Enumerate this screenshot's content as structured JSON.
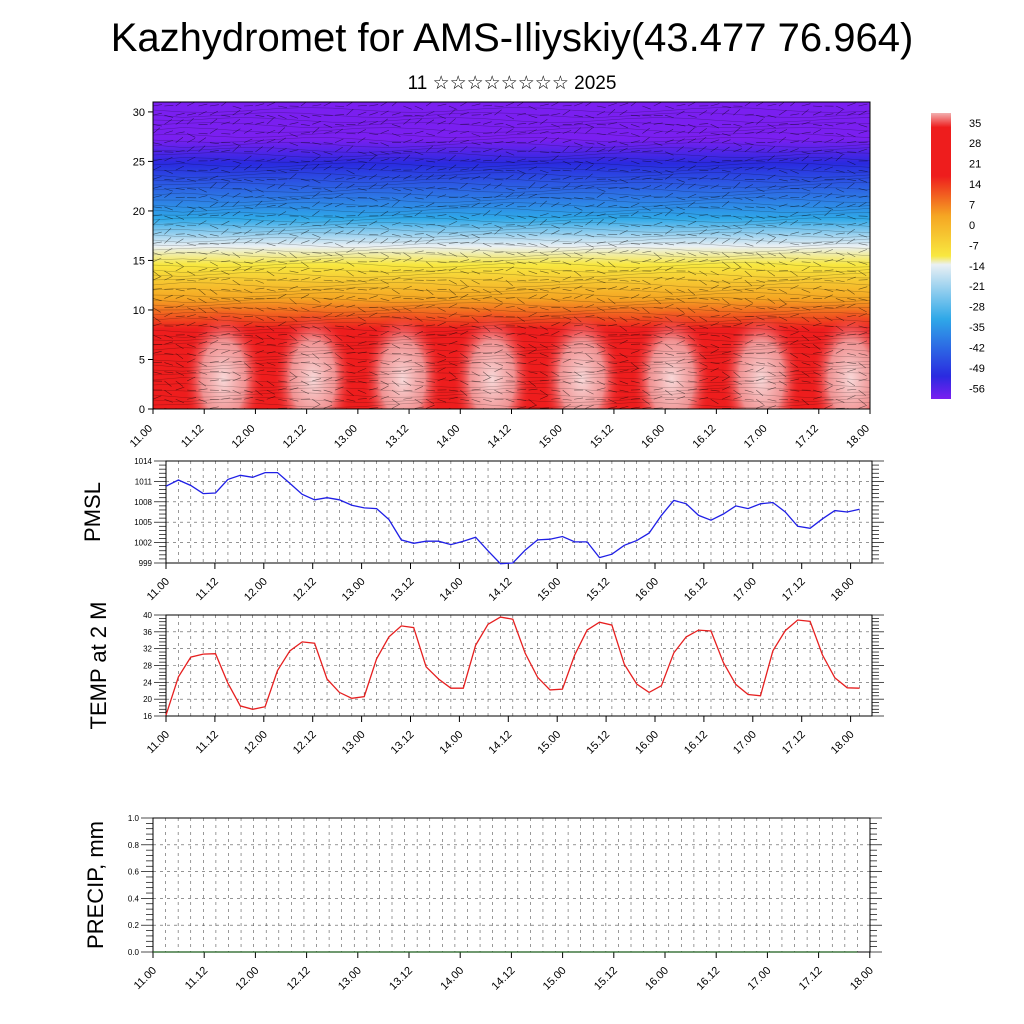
{
  "title": "Kazhydromet for AMS-Iliyskiy(43.477 76.964)",
  "subtitle": "11 ☆☆☆☆☆☆☆☆ 2025",
  "chart_data": [
    {
      "type": "heatmap",
      "name": "cross-section",
      "ylim": [
        0,
        31
      ],
      "y_ticks": [
        "0",
        "5",
        "10",
        "15",
        "20",
        "25",
        "30"
      ],
      "x_ticks": [
        "11.00",
        "11.12",
        "12.00",
        "12.12",
        "13.00",
        "13.12",
        "14.00",
        "14.12",
        "15.00",
        "15.12",
        "16.00",
        "16.12",
        "17.00",
        "17.12",
        "18.00"
      ],
      "colorbar_labels": [
        "35",
        "28",
        "21",
        "14",
        "7",
        "0",
        "-7",
        "-14",
        "-21",
        "-28",
        "-35",
        "-42",
        "-49",
        "-56"
      ],
      "colorbar_range": [
        -60,
        38
      ],
      "colors": {
        "cold": "#7a1ff0",
        "blue": "#2a2ae0",
        "cyan": "#2fa8e8",
        "white": "#eaf0f4",
        "yellow": "#f8e840",
        "orange": "#f5a623",
        "red": "#ee1d1d",
        "hot": "#f2b0b0"
      }
    },
    {
      "type": "line",
      "ylabel": "PMSL",
      "ylim": [
        999,
        1014
      ],
      "y_ticks": [
        "999",
        "1002",
        "1005",
        "1008",
        "1011",
        "1014"
      ],
      "x_ticks": [
        "11.00",
        "11.12",
        "12.00",
        "12.12",
        "13.00",
        "13.12",
        "14.00",
        "14.12",
        "15.00",
        "15.12",
        "16.00",
        "16.12",
        "17.00",
        "17.12",
        "18.00"
      ],
      "x_max": 57,
      "color": "#1f1fe6",
      "values": [
        1010.3,
        1011.2,
        1010.4,
        1009.2,
        1009.3,
        1011.3,
        1011.9,
        1011.6,
        1012.3,
        1012.3,
        1010.7,
        1009.1,
        1008.3,
        1008.6,
        1008.3,
        1007.5,
        1007.1,
        1007.0,
        1005.4,
        1002.4,
        1001.9,
        1002.2,
        1002.2,
        1001.7,
        1002.2,
        1002.8,
        1000.8,
        998.9,
        999.0,
        1000.9,
        1002.4,
        1002.5,
        1002.9,
        1002.1,
        1002.1,
        999.8,
        1000.3,
        1001.6,
        1002.3,
        1003.4,
        1006.0,
        1008.2,
        1007.7,
        1006.0,
        1005.3,
        1006.2,
        1007.4,
        1007.0,
        1007.7,
        1007.9,
        1006.5,
        1004.4,
        1004.1,
        1005.5,
        1006.7,
        1006.5,
        1006.9
      ]
    },
    {
      "type": "line",
      "ylabel": "TEMP at 2 M",
      "ylim": [
        16,
        40
      ],
      "y_ticks": [
        "16",
        "20",
        "24",
        "28",
        "32",
        "36",
        "40"
      ],
      "x_ticks": [
        "11.00",
        "11.12",
        "12.00",
        "12.12",
        "13.00",
        "13.12",
        "14.00",
        "14.12",
        "15.00",
        "15.12",
        "16.00",
        "16.12",
        "17.00",
        "17.12",
        "18.00"
      ],
      "x_max": 57,
      "color": "#e61f1f",
      "values": [
        16.2,
        25.3,
        30.0,
        30.7,
        30.8,
        23.8,
        18.4,
        17.6,
        18.2,
        26.8,
        31.5,
        33.6,
        33.3,
        24.8,
        21.6,
        20.2,
        20.6,
        29.6,
        34.8,
        37.4,
        37.0,
        27.7,
        24.8,
        22.6,
        22.6,
        32.8,
        37.8,
        39.5,
        39.0,
        30.9,
        25.2,
        22.2,
        22.4,
        30.5,
        36.4,
        38.3,
        37.6,
        28.3,
        23.6,
        21.6,
        23.2,
        31.0,
        34.8,
        36.4,
        36.2,
        28.7,
        23.5,
        21.1,
        20.8,
        31.5,
        36.3,
        38.8,
        38.5,
        30.5,
        25.1,
        22.7,
        22.6
      ]
    },
    {
      "type": "line",
      "ylabel": "PRECIP, mm",
      "ylim": [
        0,
        1
      ],
      "y_ticks": [
        "0.0",
        "0.2",
        "0.4",
        "0.6",
        "0.8",
        "1.0"
      ],
      "x_ticks": [
        "11.00",
        "11.12",
        "12.00",
        "12.12",
        "13.00",
        "13.12",
        "14.00",
        "14.12",
        "15.00",
        "15.12",
        "16.00",
        "16.12",
        "17.00",
        "17.12",
        "18.00"
      ],
      "x_max": 57,
      "color": "#1a5c1a",
      "values": [
        0,
        0,
        0,
        0,
        0,
        0,
        0,
        0,
        0,
        0,
        0,
        0,
        0,
        0,
        0,
        0,
        0,
        0,
        0,
        0,
        0,
        0,
        0,
        0,
        0,
        0,
        0,
        0,
        0,
        0,
        0,
        0,
        0,
        0,
        0,
        0,
        0,
        0,
        0,
        0,
        0,
        0,
        0,
        0,
        0,
        0,
        0,
        0,
        0,
        0,
        0,
        0,
        0,
        0,
        0,
        0,
        0
      ]
    }
  ]
}
